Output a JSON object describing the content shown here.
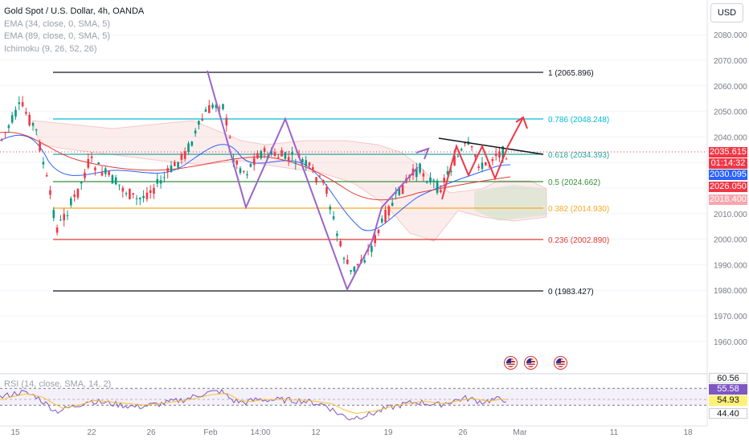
{
  "legend": {
    "title": "Gold Spot / U.S. Dollar, 4h, OANDA",
    "indicators": [
      "EMA (34, close, 0, SMA, 5)",
      "EMA (89, close, 0, SMA, 5)",
      "Ichimoku (9, 26, 52, 26)"
    ]
  },
  "currency_button": "USD",
  "price_axis": [
    "2080.000",
    "2070.000",
    "2060.000",
    "2050.000",
    "2040.000",
    "2030.000",
    "2020.000",
    "2010.000",
    "2000.000",
    "1990.000",
    "1980.000",
    "1970.000",
    "1960.000"
  ],
  "time_axis": [
    "15",
    "22",
    "26",
    "Feb",
    "14:00",
    "12",
    "19",
    "26",
    "Mar",
    "11",
    "18"
  ],
  "fib_levels": [
    {
      "label": "1 (2065.896)",
      "color": "#131722"
    },
    {
      "label": "0.786 (2048.248)",
      "color": "#00bcd4"
    },
    {
      "label": "0.618 (2034.393)",
      "color": "#26a69a"
    },
    {
      "label": "0.5 (2024.662)",
      "color": "#388e3c"
    },
    {
      "label": "0.382 (2014.930)",
      "color": "#f9a825"
    },
    {
      "label": "0.236 (2002.890)",
      "color": "#e53935"
    },
    {
      "label": "0 (1983.427)",
      "color": "#131722"
    }
  ],
  "price_tags": [
    {
      "value": "2035.615",
      "color": "#f23645"
    },
    {
      "value": "01:14:32",
      "color": "#f23645"
    },
    {
      "value": "2030.095",
      "color": "#2962ff"
    },
    {
      "value": "2026.050",
      "color": "#f23645"
    },
    {
      "value": "2018.400",
      "color": "#f7a6ad"
    }
  ],
  "rsi": {
    "label": "RSI (14, close, SMA, 14, 2)",
    "tags": [
      {
        "value": "60.56",
        "color": "#ffffff"
      },
      {
        "value": "55.58",
        "color": "#7e57c2"
      },
      {
        "value": "54.93",
        "color": "#fff176"
      },
      {
        "value": "44.40",
        "color": "#ffffff"
      }
    ]
  },
  "events": [
    "us-flag-icon",
    "us-flag-icon",
    "us-flag-icon"
  ],
  "colors": {
    "up": "#089981",
    "down": "#f23645",
    "ema34": "#2962ff",
    "ema89": "#e53935",
    "pattern": "#9c64c9",
    "arrow": "#f23645"
  }
}
